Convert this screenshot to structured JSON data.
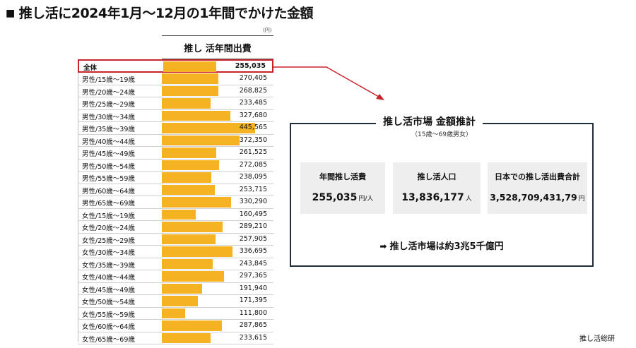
{
  "title": "推し活に2024年1月～12月の1年間でかけた金額",
  "title_marker": "■",
  "unit": "(円)",
  "column_header": "推し 活年間出費",
  "accent_color": "#f5b324",
  "highlight_color": "#c8242c",
  "chart_data": {
    "type": "bar",
    "orientation": "horizontal",
    "xlim": [
      0,
      500000
    ],
    "categories": [
      "全体",
      "男性/15歳～19歳",
      "男性/20歳～24歳",
      "男性/25歳～29歳",
      "男性/30歳～34歳",
      "男性/35歳～39歳",
      "男性/40歳～44歳",
      "男性/45歳～49歳",
      "男性/50歳～54歳",
      "男性/55歳～59歳",
      "男性/60歳～64歳",
      "男性/65歳～69歳",
      "女性/15歳～19歳",
      "女性/20歳～24歳",
      "女性/25歳～29歳",
      "女性/30歳～34歳",
      "女性/35歳～39歳",
      "女性/40歳～44歳",
      "女性/45歳～49歳",
      "女性/50歳～54歳",
      "女性/55歳～59歳",
      "女性/60歳～64歳",
      "女性/65歳～69歳"
    ],
    "values": [
      255035,
      270405,
      268825,
      233485,
      327680,
      445565,
      372350,
      261525,
      272085,
      238095,
      253715,
      330290,
      160495,
      289210,
      257905,
      336695,
      243845,
      297365,
      191940,
      171395,
      111800,
      287865,
      233615
    ],
    "value_labels": [
      "255,035",
      "270,405",
      "268,825",
      "233,485",
      "327,680",
      "445,565",
      "372,350",
      "261,525",
      "272,085",
      "238,095",
      "253,715",
      "330,290",
      "160,495",
      "289,210",
      "257,905",
      "336,695",
      "243,845",
      "297,365",
      "191,940",
      "171,395",
      "111,800",
      "287,865",
      "233,615"
    ]
  },
  "market": {
    "title": "推し活市場 金額推計",
    "subtitle": "（15歳～69歳男女）",
    "cards": [
      {
        "label": "年間推し活費",
        "value": "255,035",
        "unit": "円/人"
      },
      {
        "label": "推し活人口",
        "value": "13,836,177",
        "unit": "人"
      },
      {
        "label": "日本での推し活出費合計",
        "value": "3,528,709,431,79",
        "unit": "円"
      }
    ],
    "conclusion_arrow": "➡",
    "conclusion": "推し活市場は約3兆5千億円"
  },
  "source": "推し活総研"
}
